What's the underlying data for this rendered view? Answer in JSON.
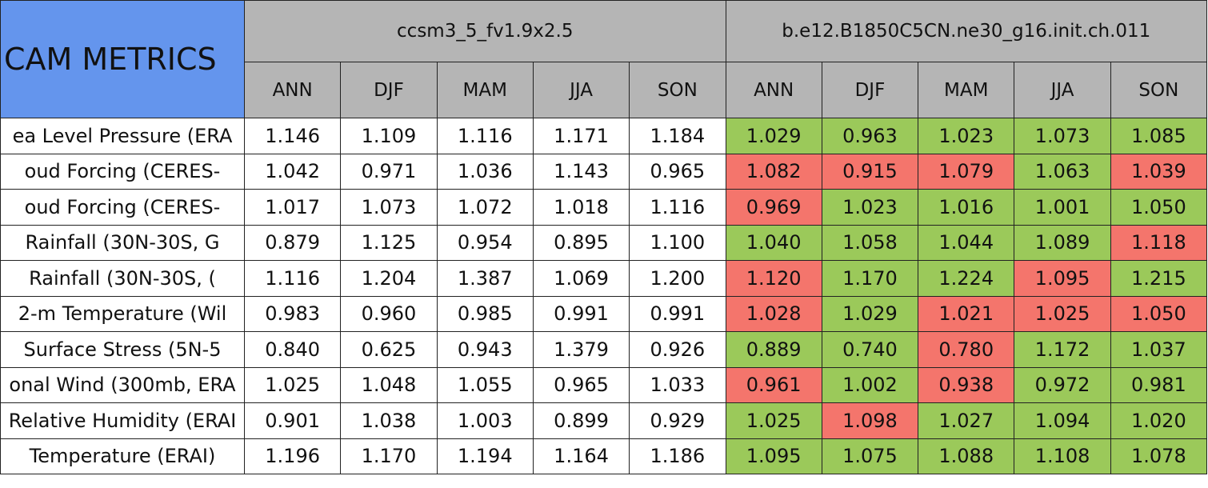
{
  "table": {
    "title": "CAM METRICS",
    "groups": [
      {
        "name": "ccsm3_5_fv1.9x2.5",
        "columns": [
          "ANN",
          "DJF",
          "MAM",
          "JJA",
          "SON"
        ]
      },
      {
        "name": "b.e12.B1850C5CN.ne30_g16.init.ch.011",
        "columns": [
          "ANN",
          "DJF",
          "MAM",
          "JJA",
          "SON"
        ]
      }
    ],
    "colors": {
      "base": "#ffffff",
      "better": "#9bc95a",
      "worse": "#f4756c"
    },
    "rows": [
      {
        "label": "ea Level Pressure (ERA",
        "cells": [
          {
            "text": "1.146",
            "color": "base"
          },
          {
            "text": "1.109",
            "color": "base"
          },
          {
            "text": "1.116",
            "color": "base"
          },
          {
            "text": "1.171",
            "color": "base"
          },
          {
            "text": "1.184",
            "color": "base"
          },
          {
            "text": "1.029",
            "color": "better"
          },
          {
            "text": "0.963",
            "color": "better"
          },
          {
            "text": "1.023",
            "color": "better"
          },
          {
            "text": "1.073",
            "color": "better"
          },
          {
            "text": "1.085",
            "color": "better"
          }
        ]
      },
      {
        "label": "oud Forcing (CERES-",
        "cells": [
          {
            "text": "1.042",
            "color": "base"
          },
          {
            "text": "0.971",
            "color": "base"
          },
          {
            "text": "1.036",
            "color": "base"
          },
          {
            "text": "1.143",
            "color": "base"
          },
          {
            "text": "0.965",
            "color": "base"
          },
          {
            "text": "1.082",
            "color": "worse"
          },
          {
            "text": "0.915",
            "color": "worse"
          },
          {
            "text": "1.079",
            "color": "worse"
          },
          {
            "text": "1.063",
            "color": "better"
          },
          {
            "text": "1.039",
            "color": "worse"
          }
        ]
      },
      {
        "label": "oud Forcing (CERES-",
        "cells": [
          {
            "text": "1.017",
            "color": "base"
          },
          {
            "text": "1.073",
            "color": "base"
          },
          {
            "text": "1.072",
            "color": "base"
          },
          {
            "text": "1.018",
            "color": "base"
          },
          {
            "text": "1.116",
            "color": "base"
          },
          {
            "text": "0.969",
            "color": "worse"
          },
          {
            "text": "1.023",
            "color": "better"
          },
          {
            "text": "1.016",
            "color": "better"
          },
          {
            "text": "1.001",
            "color": "better"
          },
          {
            "text": "1.050",
            "color": "better"
          }
        ]
      },
      {
        "label": "Rainfall (30N-30S, G",
        "cells": [
          {
            "text": "0.879",
            "color": "base"
          },
          {
            "text": "1.125",
            "color": "base"
          },
          {
            "text": "0.954",
            "color": "base"
          },
          {
            "text": "0.895",
            "color": "base"
          },
          {
            "text": "1.100",
            "color": "base"
          },
          {
            "text": "1.040",
            "color": "better"
          },
          {
            "text": "1.058",
            "color": "better"
          },
          {
            "text": "1.044",
            "color": "better"
          },
          {
            "text": "1.089",
            "color": "better"
          },
          {
            "text": "1.118",
            "color": "worse"
          }
        ]
      },
      {
        "label": "Rainfall (30N-30S, (",
        "cells": [
          {
            "text": "1.116",
            "color": "base"
          },
          {
            "text": "1.204",
            "color": "base"
          },
          {
            "text": "1.387",
            "color": "base"
          },
          {
            "text": "1.069",
            "color": "base"
          },
          {
            "text": "1.200",
            "color": "base"
          },
          {
            "text": "1.120",
            "color": "worse"
          },
          {
            "text": "1.170",
            "color": "better"
          },
          {
            "text": "1.224",
            "color": "better"
          },
          {
            "text": "1.095",
            "color": "worse"
          },
          {
            "text": "1.215",
            "color": "better"
          }
        ]
      },
      {
        "label": "2-m Temperature (Wil",
        "cells": [
          {
            "text": "0.983",
            "color": "base"
          },
          {
            "text": "0.960",
            "color": "base"
          },
          {
            "text": "0.985",
            "color": "base"
          },
          {
            "text": "0.991",
            "color": "base"
          },
          {
            "text": "0.991",
            "color": "base"
          },
          {
            "text": "1.028",
            "color": "worse"
          },
          {
            "text": "1.029",
            "color": "better"
          },
          {
            "text": "1.021",
            "color": "worse"
          },
          {
            "text": "1.025",
            "color": "worse"
          },
          {
            "text": "1.050",
            "color": "worse"
          }
        ]
      },
      {
        "label": "Surface Stress (5N-5",
        "cells": [
          {
            "text": "0.840",
            "color": "base"
          },
          {
            "text": "0.625",
            "color": "base"
          },
          {
            "text": "0.943",
            "color": "base"
          },
          {
            "text": "1.379",
            "color": "base"
          },
          {
            "text": "0.926",
            "color": "base"
          },
          {
            "text": "0.889",
            "color": "better"
          },
          {
            "text": "0.740",
            "color": "better"
          },
          {
            "text": "0.780",
            "color": "worse"
          },
          {
            "text": "1.172",
            "color": "better"
          },
          {
            "text": "1.037",
            "color": "better"
          }
        ]
      },
      {
        "label": "onal Wind (300mb, ERA",
        "cells": [
          {
            "text": "1.025",
            "color": "base"
          },
          {
            "text": "1.048",
            "color": "base"
          },
          {
            "text": "1.055",
            "color": "base"
          },
          {
            "text": "0.965",
            "color": "base"
          },
          {
            "text": "1.033",
            "color": "base"
          },
          {
            "text": "0.961",
            "color": "worse"
          },
          {
            "text": "1.002",
            "color": "better"
          },
          {
            "text": "0.938",
            "color": "worse"
          },
          {
            "text": "0.972",
            "color": "better"
          },
          {
            "text": "0.981",
            "color": "better"
          }
        ]
      },
      {
        "label": "Relative Humidity (ERAI",
        "cells": [
          {
            "text": "0.901",
            "color": "base"
          },
          {
            "text": "1.038",
            "color": "base"
          },
          {
            "text": "1.003",
            "color": "base"
          },
          {
            "text": "0.899",
            "color": "base"
          },
          {
            "text": "0.929",
            "color": "base"
          },
          {
            "text": "1.025",
            "color": "better"
          },
          {
            "text": "1.098",
            "color": "worse"
          },
          {
            "text": "1.027",
            "color": "better"
          },
          {
            "text": "1.094",
            "color": "better"
          },
          {
            "text": "1.020",
            "color": "better"
          }
        ]
      },
      {
        "label": "Temperature (ERAI)",
        "cells": [
          {
            "text": "1.196",
            "color": "base"
          },
          {
            "text": "1.170",
            "color": "base"
          },
          {
            "text": "1.194",
            "color": "base"
          },
          {
            "text": "1.164",
            "color": "base"
          },
          {
            "text": "1.186",
            "color": "base"
          },
          {
            "text": "1.095",
            "color": "better"
          },
          {
            "text": "1.075",
            "color": "better"
          },
          {
            "text": "1.088",
            "color": "better"
          },
          {
            "text": "1.108",
            "color": "better"
          },
          {
            "text": "1.078",
            "color": "better"
          }
        ]
      }
    ]
  }
}
